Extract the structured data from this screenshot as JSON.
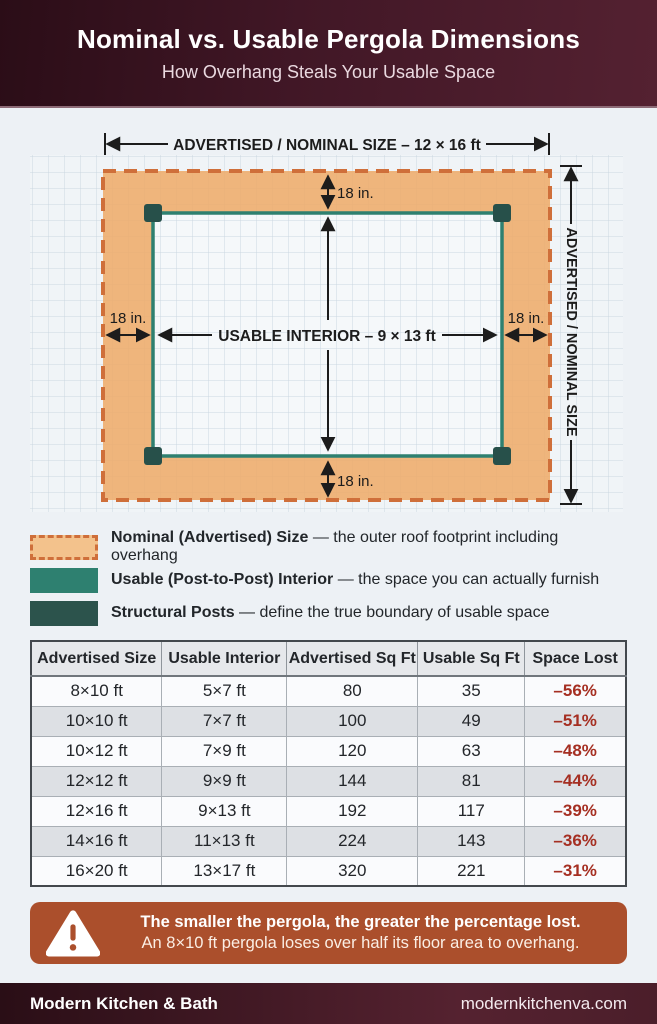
{
  "header": {
    "title": "Nominal vs. Usable Pergola Dimensions",
    "subtitle": "How Overhang Steals Your Usable Space"
  },
  "diagram": {
    "nominal_dimension_label": "ADVERTISED / NOMINAL SIZE – 12 × 16 ft",
    "vertical_dimension_label": "ADVERTISED / NOMINAL SIZE",
    "interior_label": "USABLE INTERIOR – 9 × 13 ft",
    "overhang_top": "18 in.",
    "overhang_bottom": "18 in.",
    "overhang_left": "18 in.",
    "overhang_right": "18 in.",
    "colors": {
      "nominal_fill": "#eeac6b",
      "nominal_border": "#cf6f3a",
      "usable_border": "#2e8070",
      "post": "#27504a",
      "dimension_line": "#1c1c1c",
      "grid_line": "#cbd7e1"
    }
  },
  "legend": {
    "items": [
      {
        "label": "Nominal (Advertised) Size",
        "desc": "— the outer roof footprint including overhang"
      },
      {
        "label": "Usable (Post-to-Post) Interior",
        "desc": "— the space you can actually furnish"
      },
      {
        "label": "Structural Posts",
        "desc": "— define the true boundary of usable space"
      }
    ]
  },
  "table": {
    "headers": [
      "Advertised Size",
      "Usable Interior",
      "Advertised Sq Ft",
      "Usable Sq Ft",
      "Space Lost"
    ],
    "rows": [
      [
        "8×10 ft",
        "5×7 ft",
        "80",
        "35",
        "–56%"
      ],
      [
        "10×10 ft",
        "7×7 ft",
        "100",
        "49",
        "–51%"
      ],
      [
        "10×12 ft",
        "7×9 ft",
        "120",
        "63",
        "–48%"
      ],
      [
        "12×12 ft",
        "9×9 ft",
        "144",
        "81",
        "–44%"
      ],
      [
        "12×16 ft",
        "9×13 ft",
        "192",
        "117",
        "–39%"
      ],
      [
        "14×16 ft",
        "11×13 ft",
        "224",
        "143",
        "–36%"
      ],
      [
        "16×20 ft",
        "13×17 ft",
        "320",
        "221",
        "–31%"
      ]
    ]
  },
  "callout": {
    "line1": "The smaller the pergola, the greater the percentage lost.",
    "line2": "An 8×10 ft pergola loses over half its floor area to overhang."
  },
  "footer": {
    "brand": "Modern Kitchen & Bath",
    "website": "modernkitchenva.com"
  }
}
